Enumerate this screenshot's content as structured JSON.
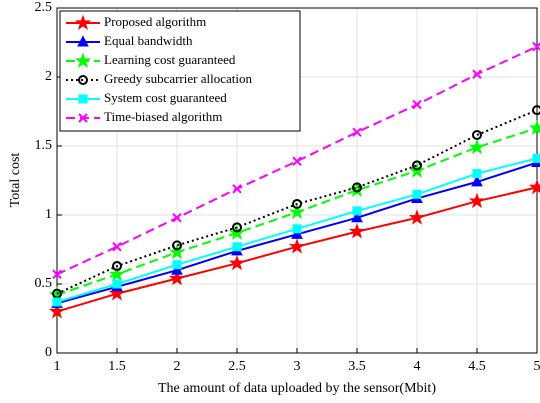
{
  "chart_data": {
    "type": "line",
    "xlabel": "The amount of data uploaded by the sensor(Mbit)",
    "ylabel": "Total cost",
    "x": [
      1,
      1.5,
      2,
      2.5,
      3,
      3.5,
      4,
      4.5,
      5
    ],
    "xlim": [
      1,
      5
    ],
    "xticks": [
      1,
      1.5,
      2,
      2.5,
      3,
      3.5,
      4,
      4.5,
      5
    ],
    "ylim": [
      0,
      2.5
    ],
    "yticks": [
      0,
      0.5,
      1,
      1.5,
      2,
      2.5
    ],
    "grid": true,
    "legend": "upper left",
    "series": [
      {
        "name": "Proposed algorithm",
        "color": "#ff0000",
        "dash": "solid",
        "marker": "star",
        "values": [
          0.3,
          0.43,
          0.54,
          0.65,
          0.77,
          0.88,
          0.98,
          1.1,
          1.2
        ]
      },
      {
        "name": "Equal bandwidth",
        "color": "#0000ff",
        "dash": "solid",
        "marker": "triangle",
        "values": [
          0.36,
          0.48,
          0.6,
          0.74,
          0.86,
          0.98,
          1.12,
          1.24,
          1.38
        ]
      },
      {
        "name": "Learning cost guaranteed",
        "color": "#00ff00",
        "dash": "dashed",
        "marker": "star",
        "values": [
          0.42,
          0.57,
          0.73,
          0.87,
          1.02,
          1.18,
          1.32,
          1.49,
          1.63
        ]
      },
      {
        "name": "Greedy subcarrier allocation",
        "color": "#000000",
        "dash": "dotted",
        "marker": "circle",
        "values": [
          0.43,
          0.63,
          0.78,
          0.91,
          1.08,
          1.2,
          1.36,
          1.58,
          1.76
        ]
      },
      {
        "name": "System cost guaranteed",
        "color": "#00ffff",
        "dash": "solid",
        "marker": "square",
        "values": [
          0.37,
          0.5,
          0.64,
          0.77,
          0.9,
          1.03,
          1.15,
          1.3,
          1.41
        ]
      },
      {
        "name": "Time-biased algorithm",
        "color": "#ff00ff",
        "dash": "dashed",
        "marker": "x",
        "values": [
          0.57,
          0.77,
          0.98,
          1.19,
          1.39,
          1.6,
          1.8,
          2.02,
          2.22
        ]
      }
    ]
  }
}
